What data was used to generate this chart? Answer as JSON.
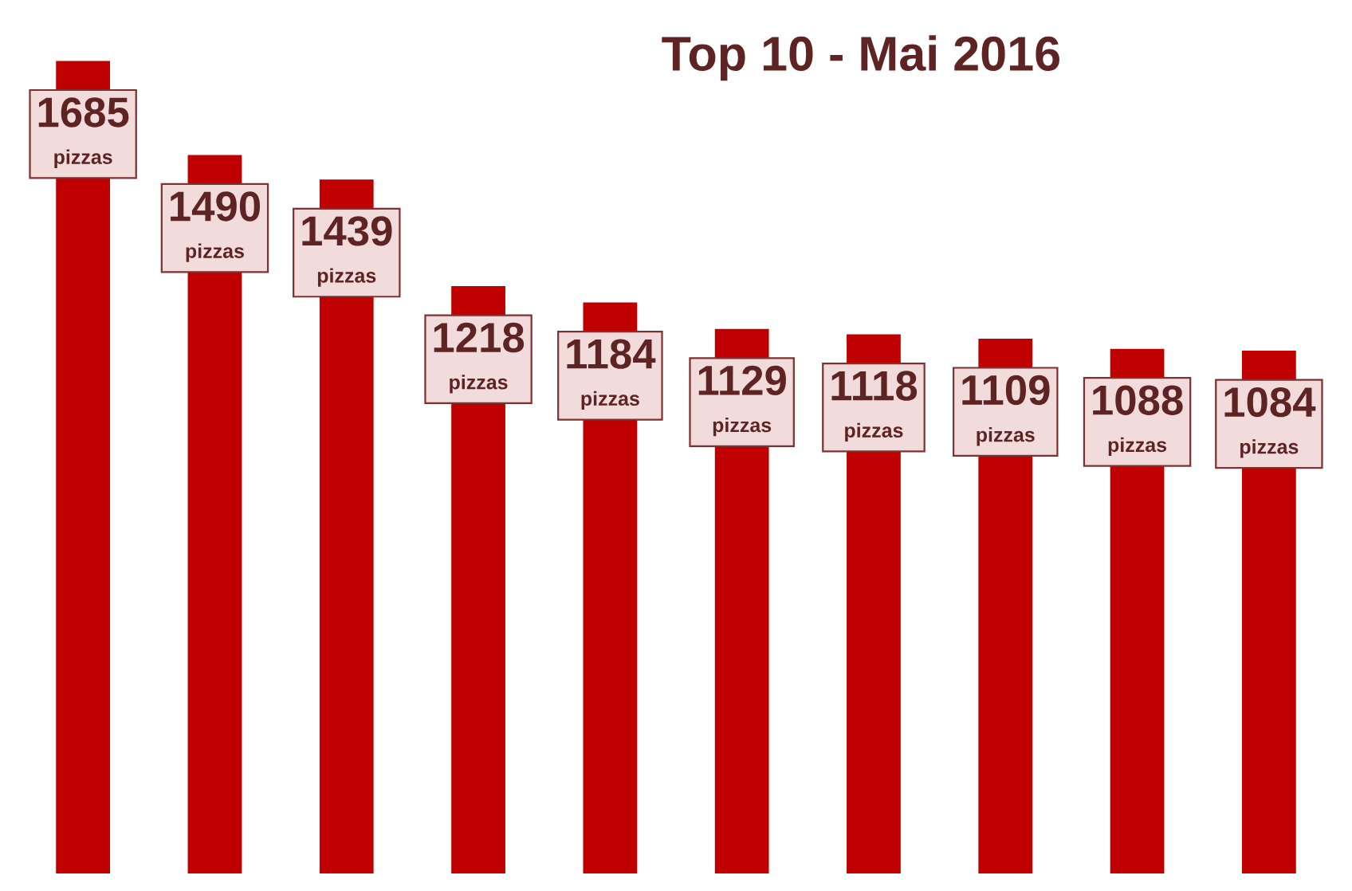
{
  "chart_data": {
    "type": "bar",
    "title": "Top 10 - Mai 2016",
    "categories": [
      null,
      null,
      null,
      null,
      null,
      null,
      null,
      null,
      null,
      null
    ],
    "values": [
      1685,
      1490,
      1439,
      1218,
      1184,
      1129,
      1118,
      1109,
      1088,
      1084
    ],
    "value_labels": [
      "1685\npizzas",
      "1490\npizzas",
      "1439\npizzas",
      "1218\npizzas",
      "1184\npizzas",
      "1129\npizzas",
      "1118\npizzas",
      "1109\npizzas",
      "1088\npizzas",
      "1084\npizzas"
    ],
    "color": "#c00000",
    "legend": false
  }
}
